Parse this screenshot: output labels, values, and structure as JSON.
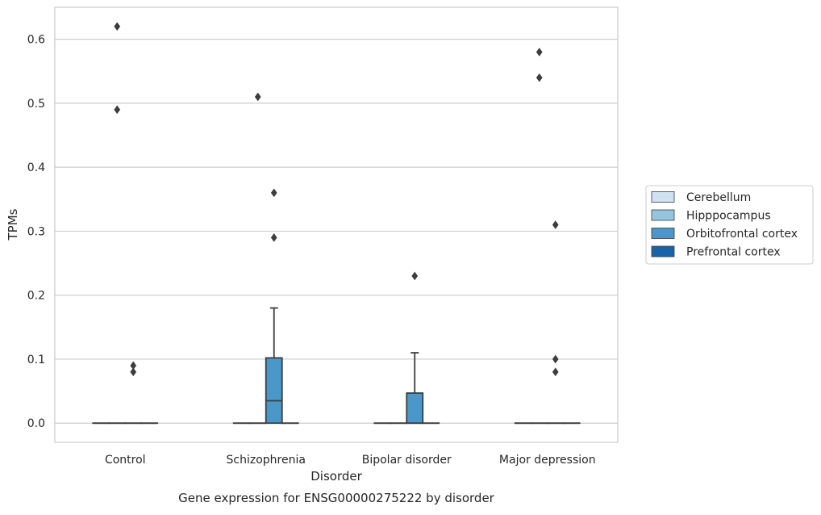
{
  "chart_data": {
    "type": "box",
    "title": "",
    "caption": "Gene expression for ENSG00000275222 by disorder",
    "xlabel": "Disorder",
    "ylabel": "TPMs",
    "ylim": [
      -0.03,
      0.65
    ],
    "yticks": [
      0.0,
      0.1,
      0.2,
      0.3,
      0.4,
      0.5,
      0.6
    ],
    "ytick_labels": [
      "0.0",
      "0.1",
      "0.2",
      "0.3",
      "0.4",
      "0.5",
      "0.6"
    ],
    "grid": "horizontal",
    "legend_placement": "right",
    "categories": [
      "Control",
      "Schizophrenia",
      "Bipolar disorder",
      "Major depression"
    ],
    "series": [
      {
        "name": "Cerebellum",
        "color": "#d0e1f2",
        "boxes": [
          {
            "category": "Control",
            "q1": 0,
            "median": 0,
            "q3": 0,
            "whisker_low": 0,
            "whisker_high": 0,
            "outliers": []
          },
          {
            "category": "Schizophrenia",
            "q1": 0,
            "median": 0,
            "q3": 0,
            "whisker_low": 0,
            "whisker_high": 0,
            "outliers": []
          },
          {
            "category": "Bipolar disorder",
            "q1": 0,
            "median": 0,
            "q3": 0,
            "whisker_low": 0,
            "whisker_high": 0,
            "outliers": []
          },
          {
            "category": "Major depression",
            "q1": 0,
            "median": 0,
            "q3": 0,
            "whisker_low": 0,
            "whisker_high": 0,
            "outliers": []
          }
        ]
      },
      {
        "name": "Hipppocampus",
        "color": "#94c4df",
        "boxes": [
          {
            "category": "Control",
            "q1": 0,
            "median": 0,
            "q3": 0,
            "whisker_low": 0,
            "whisker_high": 0,
            "outliers": [
              0.49,
              0.62
            ]
          },
          {
            "category": "Schizophrenia",
            "q1": 0,
            "median": 0,
            "q3": 0,
            "whisker_low": 0,
            "whisker_high": 0,
            "outliers": [
              0.51
            ]
          },
          {
            "category": "Bipolar disorder",
            "q1": 0,
            "median": 0,
            "q3": 0,
            "whisker_low": 0,
            "whisker_high": 0,
            "outliers": []
          },
          {
            "category": "Major depression",
            "q1": 0,
            "median": 0,
            "q3": 0,
            "whisker_low": 0,
            "whisker_high": 0,
            "outliers": [
              0.54,
              0.58
            ]
          }
        ]
      },
      {
        "name": "Orbitofrontal cortex",
        "color": "#4a98c9",
        "boxes": [
          {
            "category": "Control",
            "q1": 0,
            "median": 0,
            "q3": 0,
            "whisker_low": 0,
            "whisker_high": 0,
            "outliers": [
              0.08,
              0.09
            ]
          },
          {
            "category": "Schizophrenia",
            "q1": 0,
            "median": 0.035,
            "q3": 0.102,
            "whisker_low": 0,
            "whisker_high": 0.18,
            "outliers": [
              0.29,
              0.36
            ]
          },
          {
            "category": "Bipolar disorder",
            "q1": 0,
            "median": 0,
            "q3": 0.047,
            "whisker_low": 0,
            "whisker_high": 0.11,
            "outliers": [
              0.23
            ]
          },
          {
            "category": "Major depression",
            "q1": 0,
            "median": 0,
            "q3": 0,
            "whisker_low": 0,
            "whisker_high": 0,
            "outliers": [
              0.08,
              0.1,
              0.31
            ]
          }
        ]
      },
      {
        "name": "Prefrontal cortex",
        "color": "#1764ab",
        "boxes": [
          {
            "category": "Control",
            "q1": 0,
            "median": 0,
            "q3": 0,
            "whisker_low": 0,
            "whisker_high": 0,
            "outliers": []
          },
          {
            "category": "Schizophrenia",
            "q1": 0,
            "median": 0,
            "q3": 0,
            "whisker_low": 0,
            "whisker_high": 0,
            "outliers": []
          },
          {
            "category": "Bipolar disorder",
            "q1": 0,
            "median": 0,
            "q3": 0,
            "whisker_low": 0,
            "whisker_high": 0,
            "outliers": []
          },
          {
            "category": "Major depression",
            "q1": 0,
            "median": 0,
            "q3": 0,
            "whisker_low": 0,
            "whisker_high": 0,
            "outliers": []
          }
        ]
      }
    ]
  }
}
